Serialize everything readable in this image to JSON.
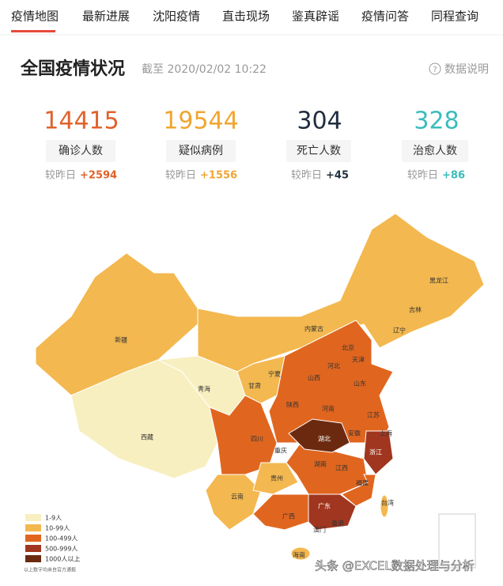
{
  "tabs": [
    "疫情地图",
    "最新进展",
    "沈阳疫情",
    "直击现场",
    "鉴真辟谣",
    "疫情问答",
    "同程查询"
  ],
  "header": {
    "title": "全国疫情状况",
    "timestamp": "截至 2020/02/02 10:22",
    "help": "数据说明"
  },
  "stats": [
    {
      "value": 14415,
      "label": "确诊人数",
      "delta_prefix": "较昨日",
      "delta": "+2594"
    },
    {
      "value": 19544,
      "label": "疑似病例",
      "delta_prefix": "较昨日",
      "delta": "+1556"
    },
    {
      "value": 304,
      "label": "死亡人数",
      "delta_prefix": "较昨日",
      "delta": "+45"
    },
    {
      "value": 328,
      "label": "治愈人数",
      "delta_prefix": "较昨日",
      "delta": "+86"
    }
  ],
  "map": {
    "labels": [
      "黑龙江",
      "吉林",
      "辽宁",
      "内蒙古",
      "北京",
      "天津",
      "河北",
      "山西",
      "山东",
      "宁夏",
      "甘肃",
      "青海",
      "新疆",
      "西藏",
      "陕西",
      "河南",
      "江苏",
      "安徽",
      "上海",
      "湖北",
      "浙江",
      "四川",
      "重庆",
      "湖南",
      "江西",
      "贵州",
      "福建",
      "云南",
      "广西",
      "广东",
      "台湾",
      "香港",
      "澳门",
      "海南"
    ],
    "legend": [
      "1-9人",
      "10-99人",
      "100-499人",
      "500-999人",
      "1000人以上"
    ],
    "note": "以上数字均来自官方通报"
  },
  "watermark": "头条 @EXCEL数据处理与分析"
}
